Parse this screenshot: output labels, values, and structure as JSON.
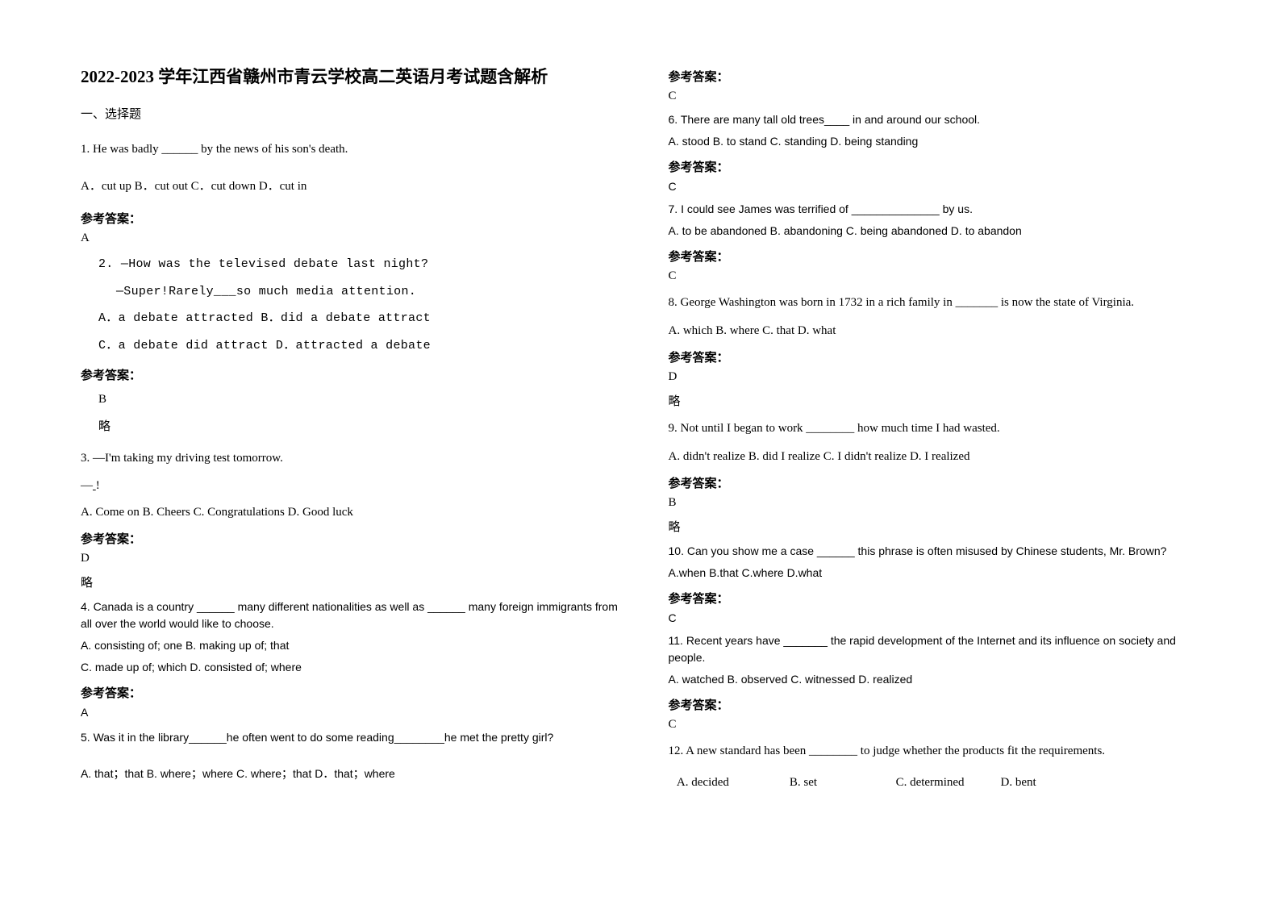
{
  "title": "2022-2023 学年江西省赣州市青云学校高二英语月考试题含解析",
  "section1": "一、选择题",
  "ans_label": "参考答案：",
  "略": "略",
  "left": {
    "q1": {
      "stem": "1. He was badly ______ by the news of his son's death.",
      "opts": "A．cut up      B．cut out           C．cut down      D．cut in",
      "ans": "A"
    },
    "q2": {
      "stem": "2. —How was the televised debate last night?",
      "line2": "—Super!Rarely___so much media attention.",
      "optsA": "A．a debate attracted       B．did a debate attract",
      "optsB": "C．a debate did attract    D．attracted a debate",
      "ans": "B"
    },
    "q3": {
      "stem": "3. —I'm taking my driving test tomorrow.",
      "line2": "—____!",
      "opts": "   A. Come on          B. Cheers          C. Congratulations          D. Good luck",
      "ans": "D"
    },
    "q4": {
      "stem": "4. Canada is a country ______ many different nationalities as well as ______ many foreign immigrants from all over the world would like to choose.",
      "optsA": "    A. consisting of; one               B. making up of; that",
      "optsB": "    C. made up of; which               D. consisted of; where",
      "ans": "A"
    },
    "q5": {
      "stem": "5. Was it in the library______he often went to do some reading________he met the pretty girl?",
      "opts": "A. that；that  B. where；where  C. where；that      D．that；where"
    }
  },
  "right": {
    "q5ans": "C",
    "q6": {
      "stem": "6. There are many tall old trees____ in and around our school.",
      "opts": "A. stood     B. to stand   C. standing    D. being standing",
      "ans": "C"
    },
    "q7": {
      "stem": "7. I could see James was terrified of ______________ by us.",
      "opts": "    A. to be abandoned     B. abandoning      C. being abandoned     D. to abandon",
      "ans": "C"
    },
    "q8": {
      "stem": "8. George Washington was born in 1732 in a rich family in _______ is now the state of Virginia.",
      "opts": "     A. which             B. where             C. that               D. what",
      "ans": "D"
    },
    "q9": {
      "stem": "9. Not until I began to work ________ how much time I had wasted.",
      "opts": "   A. didn't realize    B. did I realize     C. I didn't realize    D. I realized",
      "ans": "B"
    },
    "q10": {
      "stem": "10. Can you show me a case ______  this phrase is often misused by Chinese students, Mr. Brown?",
      "opts": "A.when  B.that   C.where          D.what",
      "ans": "C"
    },
    "q11": {
      "stem": "11. Recent years have _______ the rapid development of the Internet and its influence on society and people.",
      "opts": "        A. watched       B. observed    C. witnessed     D. realized",
      "ans": "C"
    },
    "q12": {
      "stem": "12. A new standard has been ________ to judge whether the products fit the requirements.",
      "opts": "   A. decided                    B. set                          C. determined            D. bent"
    }
  }
}
